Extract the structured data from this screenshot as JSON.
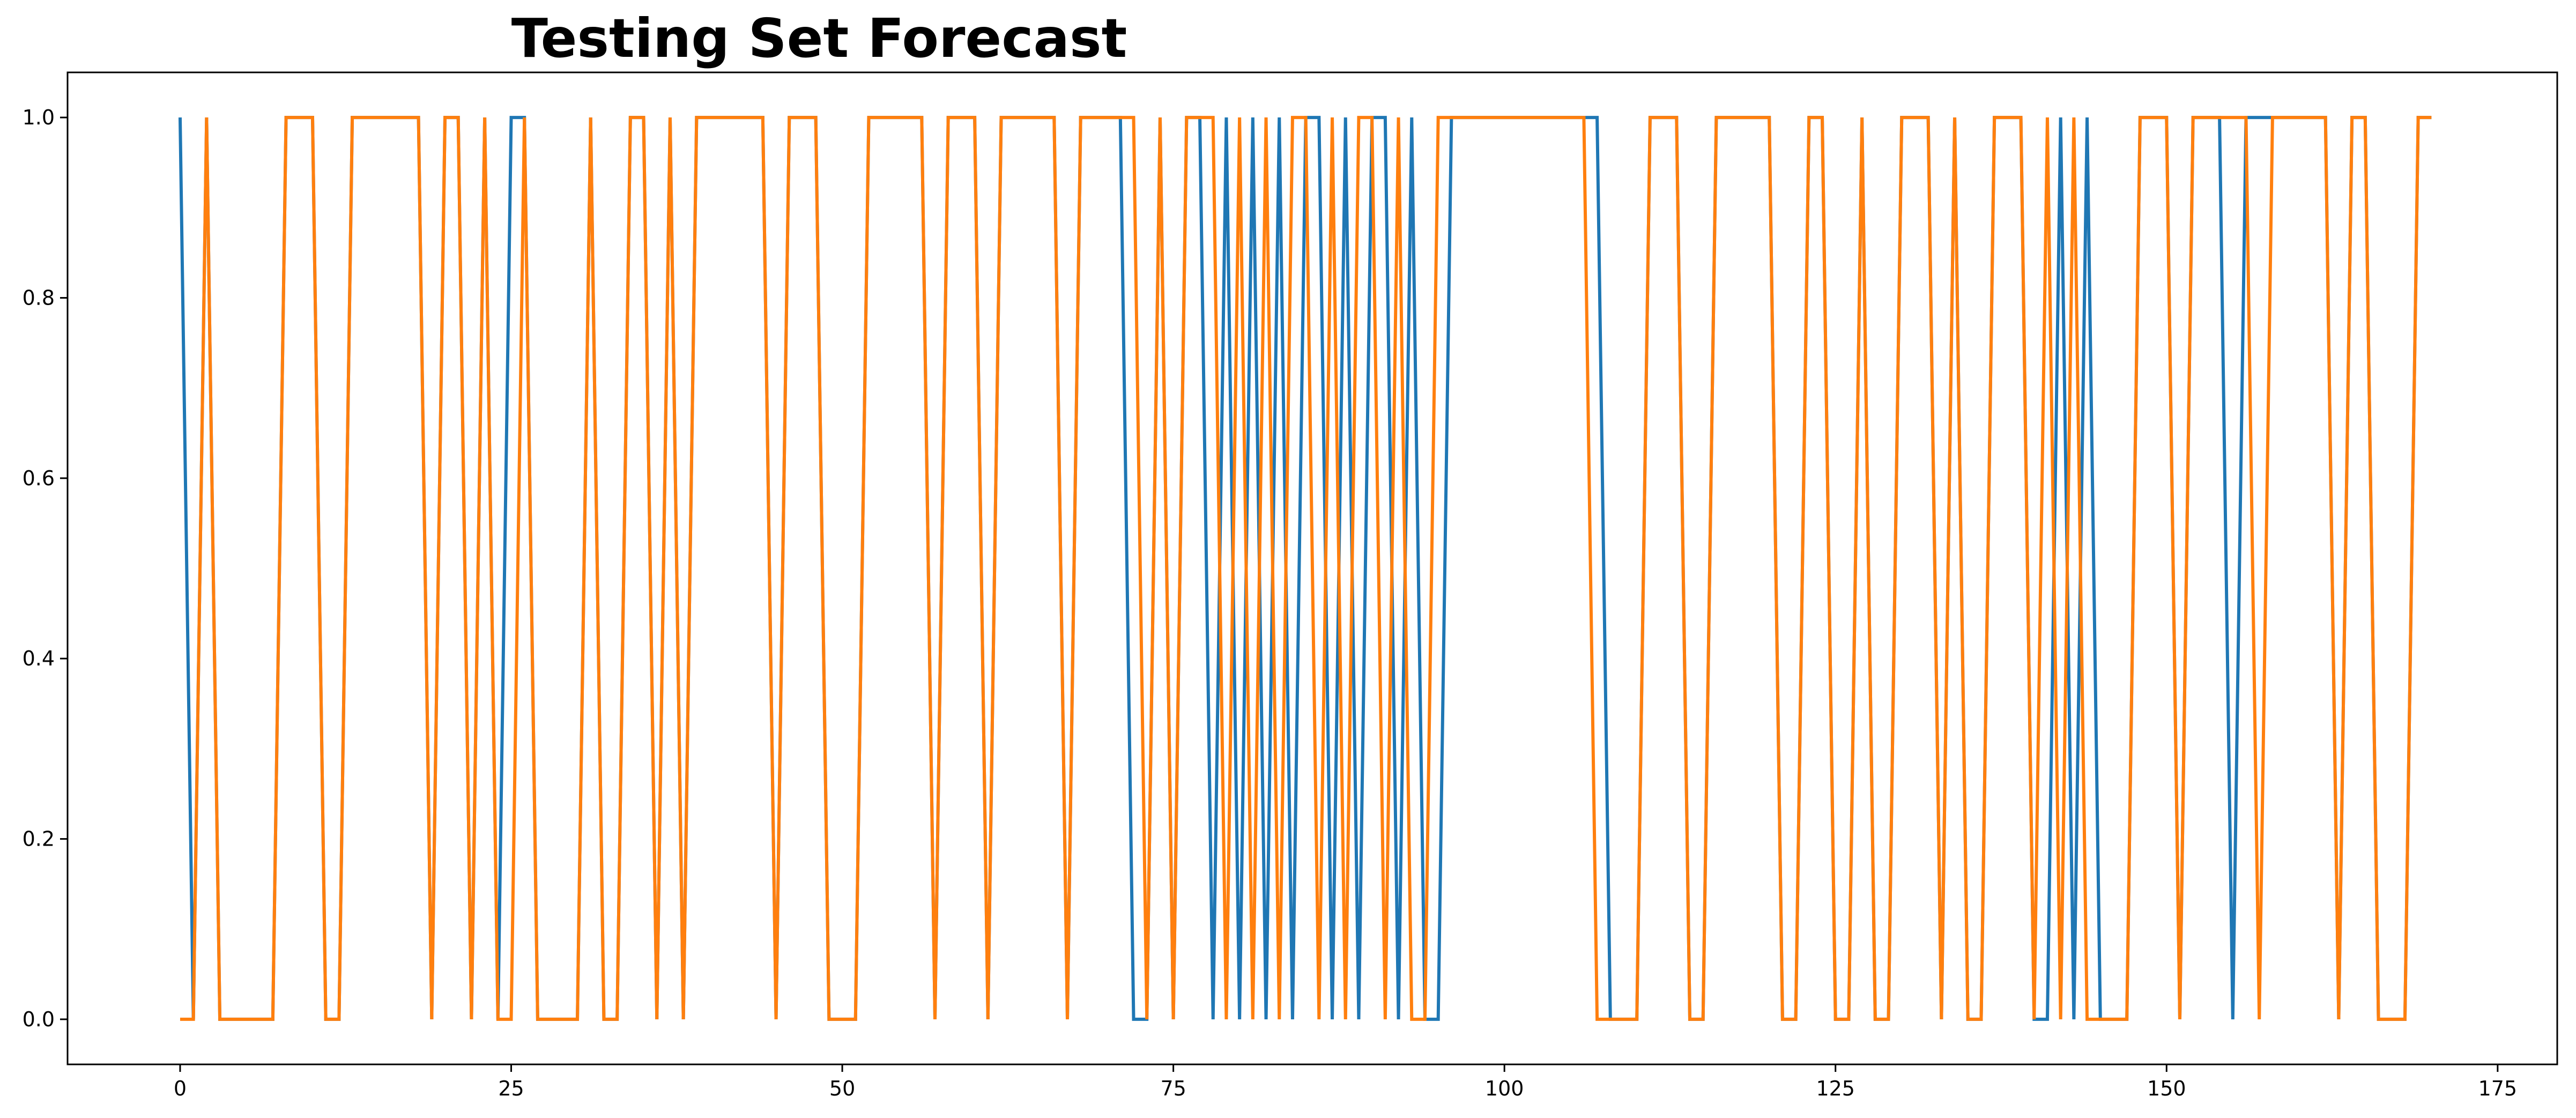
{
  "chart_data": {
    "type": "line",
    "title": "Testing Set Forecast",
    "xlabel": "",
    "ylabel": "",
    "xlim": [
      -8.5,
      179.5
    ],
    "ylim": [
      -0.05,
      1.05
    ],
    "grid": false,
    "x_ticks": [
      0,
      25,
      50,
      75,
      100,
      125,
      150,
      175
    ],
    "x_tick_labels": [
      "0",
      "25",
      "50",
      "75",
      "100",
      "125",
      "150",
      "175"
    ],
    "y_ticks": [
      0.0,
      0.2,
      0.4,
      0.6,
      0.8,
      1.0
    ],
    "y_tick_labels": [
      "0.0",
      "0.2",
      "0.4",
      "0.6",
      "0.8",
      "1.0"
    ],
    "series": [
      {
        "color": "#1f77b4",
        "values": [
          1,
          0,
          1,
          0,
          0,
          0,
          0,
          0,
          1,
          1,
          1,
          0,
          0,
          1,
          1,
          1,
          1,
          1,
          1,
          0,
          1,
          1,
          0,
          1,
          0,
          1,
          1,
          0,
          0,
          0,
          0,
          1,
          0,
          0,
          1,
          1,
          0,
          1,
          0,
          1,
          1,
          1,
          1,
          1,
          1,
          0,
          1,
          1,
          1,
          0,
          0,
          0,
          1,
          1,
          1,
          1,
          1,
          0,
          1,
          1,
          1,
          0,
          1,
          1,
          1,
          1,
          1,
          0,
          1,
          1,
          1,
          1,
          0,
          0,
          1,
          0,
          1,
          1,
          0,
          1,
          0,
          1,
          0,
          1,
          0,
          1,
          1,
          0,
          1,
          0,
          1,
          1,
          0,
          1,
          0,
          0,
          1,
          1,
          1,
          1,
          1,
          1,
          1,
          1,
          1,
          1,
          1,
          1,
          0,
          0,
          0,
          1,
          1,
          1,
          0,
          0,
          1,
          1,
          1,
          1,
          1,
          0,
          0,
          1,
          1,
          0,
          0,
          1,
          0,
          0,
          1,
          1,
          1,
          0,
          1,
          0,
          0,
          1,
          1,
          1,
          0,
          0,
          1,
          0,
          1,
          0,
          0,
          0,
          1,
          1,
          1,
          0,
          1,
          1,
          1,
          0,
          1,
          1,
          1,
          1,
          1,
          1,
          1,
          0,
          1,
          1,
          0,
          0,
          0,
          1,
          1
        ]
      },
      {
        "color": "#ff7f0e",
        "values": [
          0,
          0,
          1,
          0,
          0,
          0,
          0,
          0,
          1,
          1,
          1,
          0,
          0,
          1,
          1,
          1,
          1,
          1,
          1,
          0,
          1,
          1,
          0,
          1,
          0,
          0,
          1,
          0,
          0,
          0,
          0,
          1,
          0,
          0,
          1,
          1,
          0,
          1,
          0,
          1,
          1,
          1,
          1,
          1,
          1,
          0,
          1,
          1,
          1,
          0,
          0,
          0,
          1,
          1,
          1,
          1,
          1,
          0,
          1,
          1,
          1,
          0,
          1,
          1,
          1,
          1,
          1,
          0,
          1,
          1,
          1,
          1,
          1,
          0,
          1,
          0,
          1,
          1,
          1,
          0,
          1,
          0,
          1,
          0,
          1,
          1,
          0,
          1,
          0,
          1,
          1,
          0,
          1,
          0,
          0,
          1,
          1,
          1,
          1,
          1,
          1,
          1,
          1,
          1,
          1,
          1,
          1,
          0,
          0,
          0,
          0,
          1,
          1,
          1,
          0,
          0,
          1,
          1,
          1,
          1,
          1,
          0,
          0,
          1,
          1,
          0,
          0,
          1,
          0,
          0,
          1,
          1,
          1,
          0,
          1,
          0,
          0,
          1,
          1,
          1,
          0,
          1,
          0,
          1,
          0,
          0,
          0,
          0,
          1,
          1,
          1,
          0,
          1,
          1,
          1,
          1,
          1,
          0,
          1,
          1,
          1,
          1,
          1,
          0,
          1,
          1,
          0,
          0,
          0,
          1,
          1
        ]
      }
    ]
  }
}
